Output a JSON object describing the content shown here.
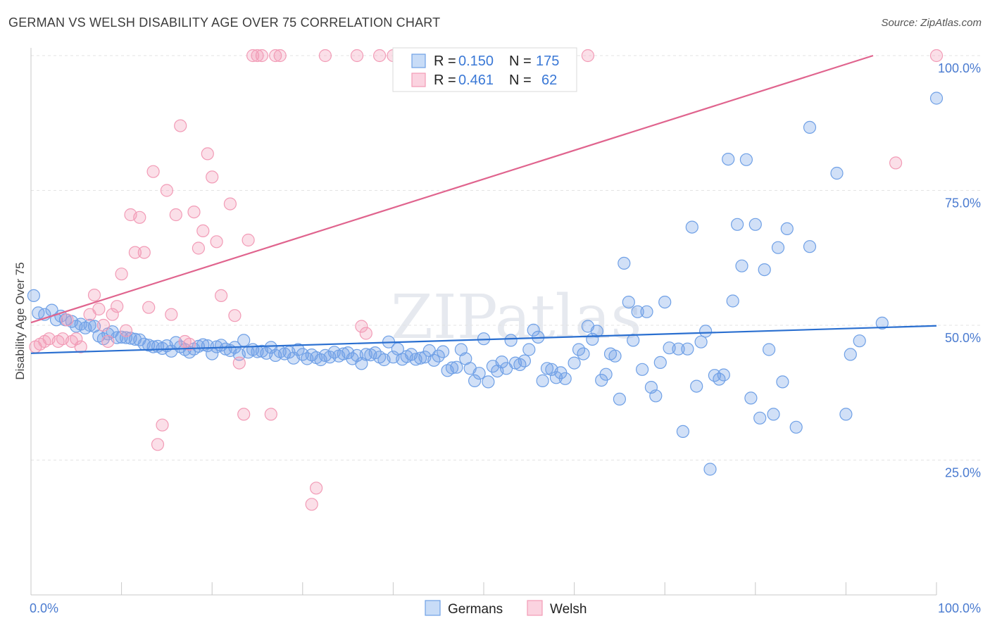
{
  "title": "GERMAN VS WELSH DISABILITY AGE OVER 75 CORRELATION CHART",
  "source": "Source: ZipAtlas.com",
  "watermark": "ZIPatlas",
  "chart_data": {
    "type": "scatter",
    "title": "GERMAN VS WELSH DISABILITY AGE OVER 75 CORRELATION CHART",
    "xlabel": "",
    "ylabel": "Disability Age Over 75",
    "xlim": [
      0,
      100
    ],
    "ylim": [
      0,
      102
    ],
    "x_tick_labels": [
      "0.0%",
      "100.0%"
    ],
    "y_ticks": [
      25,
      50,
      75,
      100
    ],
    "y_tick_labels": [
      "25.0%",
      "50.0%",
      "75.0%",
      "100.0%"
    ],
    "grid": true,
    "legend_position": "top-center",
    "series": [
      {
        "name": "Germans",
        "color": "#6fa0e6",
        "line_color": "#2a6fd0",
        "R": "0.150",
        "N": "175",
        "trend": [
          [
            0,
            44.8
          ],
          [
            100,
            49.9
          ]
        ],
        "points": [
          [
            0.3,
            55.5
          ],
          [
            0.8,
            52.3
          ],
          [
            1.5,
            52.0
          ],
          [
            2.3,
            52.8
          ],
          [
            2.8,
            51.0
          ],
          [
            3.3,
            51.7
          ],
          [
            3.8,
            51.0
          ],
          [
            4.5,
            50.7
          ],
          [
            5.0,
            49.8
          ],
          [
            5.5,
            50.2
          ],
          [
            6.0,
            49.5
          ],
          [
            6.5,
            50.0
          ],
          [
            7.0,
            49.8
          ],
          [
            7.5,
            48.0
          ],
          [
            8.0,
            47.5
          ],
          [
            8.5,
            48.4
          ],
          [
            9.0,
            48.8
          ],
          [
            9.5,
            47.7
          ],
          [
            10.0,
            47.8
          ],
          [
            10.5,
            47.7
          ],
          [
            11.0,
            47.6
          ],
          [
            11.5,
            47.4
          ],
          [
            12.0,
            47.3
          ],
          [
            12.5,
            46.5
          ],
          [
            13.0,
            46.3
          ],
          [
            13.5,
            46.0
          ],
          [
            14.0,
            46.1
          ],
          [
            14.5,
            45.7
          ],
          [
            15.0,
            46.2
          ],
          [
            15.5,
            45.2
          ],
          [
            16.0,
            46.8
          ],
          [
            16.5,
            46.0
          ],
          [
            17.0,
            45.5
          ],
          [
            17.5,
            45.0
          ],
          [
            18.0,
            45.6
          ],
          [
            18.5,
            46.1
          ],
          [
            19.0,
            46.4
          ],
          [
            19.5,
            46.2
          ],
          [
            20.0,
            44.7
          ],
          [
            20.5,
            46.0
          ],
          [
            21.0,
            46.3
          ],
          [
            21.5,
            45.6
          ],
          [
            22.0,
            45.3
          ],
          [
            22.5,
            45.9
          ],
          [
            23.0,
            44.6
          ],
          [
            23.5,
            47.2
          ],
          [
            24.0,
            45.0
          ],
          [
            24.5,
            45.5
          ],
          [
            25.0,
            45.1
          ],
          [
            25.5,
            45.2
          ],
          [
            26.0,
            44.8
          ],
          [
            26.5,
            45.9
          ],
          [
            27.0,
            44.4
          ],
          [
            27.5,
            45.1
          ],
          [
            28.0,
            44.7
          ],
          [
            28.5,
            45.0
          ],
          [
            29.0,
            43.9
          ],
          [
            29.5,
            45.5
          ],
          [
            30.0,
            44.6
          ],
          [
            30.5,
            43.8
          ],
          [
            31.0,
            44.5
          ],
          [
            31.5,
            44.0
          ],
          [
            32.0,
            43.6
          ],
          [
            32.5,
            44.4
          ],
          [
            33.0,
            44.1
          ],
          [
            33.5,
            45.0
          ],
          [
            34.0,
            44.3
          ],
          [
            34.5,
            44.7
          ],
          [
            35.0,
            44.9
          ],
          [
            35.5,
            43.8
          ],
          [
            36.0,
            44.4
          ],
          [
            36.5,
            42.9
          ],
          [
            37.0,
            44.6
          ],
          [
            37.5,
            44.5
          ],
          [
            38.0,
            44.9
          ],
          [
            38.5,
            44.1
          ],
          [
            39.0,
            43.6
          ],
          [
            39.5,
            46.9
          ],
          [
            40.0,
            44.1
          ],
          [
            40.5,
            45.6
          ],
          [
            41.0,
            43.7
          ],
          [
            41.5,
            44.2
          ],
          [
            42.0,
            44.6
          ],
          [
            42.5,
            43.7
          ],
          [
            43.0,
            43.9
          ],
          [
            43.5,
            44.1
          ],
          [
            44.0,
            45.3
          ],
          [
            44.5,
            43.5
          ],
          [
            45.0,
            44.3
          ],
          [
            45.5,
            45.1
          ],
          [
            46.0,
            41.6
          ],
          [
            46.5,
            42.1
          ],
          [
            47.0,
            42.2
          ],
          [
            47.5,
            45.5
          ],
          [
            48.0,
            43.8
          ],
          [
            48.5,
            42.0
          ],
          [
            49.0,
            39.7
          ],
          [
            49.5,
            41.1
          ],
          [
            50.0,
            47.5
          ],
          [
            50.5,
            39.5
          ],
          [
            51.0,
            42.4
          ],
          [
            51.5,
            41.5
          ],
          [
            52.0,
            43.2
          ],
          [
            52.5,
            42.0
          ],
          [
            53.0,
            47.2
          ],
          [
            53.5,
            43.0
          ],
          [
            54.0,
            42.7
          ],
          [
            54.5,
            43.4
          ],
          [
            55.0,
            45.5
          ],
          [
            55.5,
            49.1
          ],
          [
            56.0,
            47.8
          ],
          [
            56.5,
            39.7
          ],
          [
            57.0,
            42.0
          ],
          [
            57.5,
            41.8
          ],
          [
            58.0,
            40.3
          ],
          [
            58.5,
            41.2
          ],
          [
            59.0,
            40.1
          ],
          [
            60.0,
            43.0
          ],
          [
            60.5,
            45.5
          ],
          [
            61.0,
            44.7
          ],
          [
            61.5,
            49.8
          ],
          [
            62.0,
            47.4
          ],
          [
            62.5,
            48.9
          ],
          [
            63.0,
            39.8
          ],
          [
            63.5,
            40.9
          ],
          [
            64.0,
            44.7
          ],
          [
            64.5,
            44.3
          ],
          [
            65.0,
            36.3
          ],
          [
            65.5,
            61.5
          ],
          [
            66.0,
            54.3
          ],
          [
            66.5,
            47.2
          ],
          [
            67.0,
            52.5
          ],
          [
            67.5,
            41.8
          ],
          [
            68.0,
            52.5
          ],
          [
            68.5,
            38.5
          ],
          [
            69.0,
            36.9
          ],
          [
            69.5,
            43.1
          ],
          [
            70.0,
            54.3
          ],
          [
            70.5,
            45.8
          ],
          [
            71.5,
            45.6
          ],
          [
            72.0,
            30.3
          ],
          [
            72.5,
            45.6
          ],
          [
            73.0,
            68.2
          ],
          [
            73.5,
            38.7
          ],
          [
            74.0,
            46.9
          ],
          [
            74.5,
            48.9
          ],
          [
            75.0,
            23.3
          ],
          [
            75.5,
            40.7
          ],
          [
            76.0,
            40.0
          ],
          [
            76.5,
            40.8
          ],
          [
            77.0,
            80.8
          ],
          [
            77.5,
            54.5
          ],
          [
            78.0,
            68.7
          ],
          [
            78.5,
            61.0
          ],
          [
            79.0,
            80.7
          ],
          [
            79.5,
            36.5
          ],
          [
            80.0,
            68.7
          ],
          [
            80.5,
            32.8
          ],
          [
            81.0,
            60.3
          ],
          [
            81.5,
            45.5
          ],
          [
            82.0,
            33.5
          ],
          [
            82.5,
            64.4
          ],
          [
            83.0,
            39.5
          ],
          [
            83.5,
            67.9
          ],
          [
            84.5,
            31.1
          ],
          [
            86.0,
            64.6
          ],
          [
            86.0,
            86.7
          ],
          [
            89.0,
            78.2
          ],
          [
            90.0,
            33.5
          ],
          [
            90.5,
            44.6
          ],
          [
            91.5,
            47.1
          ],
          [
            94.0,
            50.4
          ],
          [
            100.0,
            92.1
          ]
        ]
      },
      {
        "name": "Welsh",
        "color": "#f29bb6",
        "line_color": "#e0648e",
        "R": "0.461",
        "N": "62",
        "trend": [
          [
            0,
            50.5
          ],
          [
            93,
            100
          ]
        ],
        "points": [
          [
            0.5,
            46.0
          ],
          [
            1.0,
            46.5
          ],
          [
            1.5,
            47.0
          ],
          [
            2.0,
            47.5
          ],
          [
            3.0,
            47.0
          ],
          [
            3.5,
            47.5
          ],
          [
            4.0,
            51.0
          ],
          [
            4.5,
            47.0
          ],
          [
            5.0,
            47.5
          ],
          [
            5.5,
            46.0
          ],
          [
            6.5,
            52.0
          ],
          [
            7.0,
            55.6
          ],
          [
            7.5,
            53.0
          ],
          [
            8.0,
            50.0
          ],
          [
            8.5,
            47.0
          ],
          [
            9.0,
            52.0
          ],
          [
            9.5,
            53.5
          ],
          [
            10.0,
            59.5
          ],
          [
            10.5,
            49.0
          ],
          [
            11.0,
            70.5
          ],
          [
            11.5,
            63.5
          ],
          [
            12.0,
            70.0
          ],
          [
            12.5,
            63.5
          ],
          [
            13.0,
            53.3
          ],
          [
            13.5,
            78.5
          ],
          [
            14.0,
            27.9
          ],
          [
            14.5,
            31.5
          ],
          [
            15.0,
            75.0
          ],
          [
            15.5,
            52.0
          ],
          [
            16.0,
            70.5
          ],
          [
            16.5,
            87.0
          ],
          [
            17.0,
            47.0
          ],
          [
            17.5,
            46.5
          ],
          [
            18.0,
            71.0
          ],
          [
            18.5,
            64.3
          ],
          [
            19.0,
            67.5
          ],
          [
            19.5,
            81.8
          ],
          [
            20.0,
            77.5
          ],
          [
            20.5,
            65.5
          ],
          [
            21.0,
            55.5
          ],
          [
            22.0,
            72.5
          ],
          [
            22.5,
            51.8
          ],
          [
            23.0,
            43.0
          ],
          [
            23.5,
            33.5
          ],
          [
            24.0,
            65.8
          ],
          [
            24.5,
            100.0
          ],
          [
            25.0,
            100.0
          ],
          [
            25.5,
            100.0
          ],
          [
            26.5,
            33.5
          ],
          [
            27.0,
            100.0
          ],
          [
            27.5,
            100.0
          ],
          [
            31.0,
            16.8
          ],
          [
            31.5,
            19.8
          ],
          [
            32.5,
            100.0
          ],
          [
            36.0,
            100.0
          ],
          [
            36.5,
            49.8
          ],
          [
            37.0,
            48.5
          ],
          [
            38.5,
            100.0
          ],
          [
            40.0,
            100.0
          ],
          [
            61.5,
            100.0
          ],
          [
            95.5,
            80.1
          ],
          [
            100.0,
            100.0
          ]
        ]
      }
    ]
  },
  "legend": {
    "rows": [
      {
        "r_label": "R =",
        "r_value": "0.150",
        "n_label": "N =",
        "n_value": "175",
        "color": "#6fa0e6"
      },
      {
        "r_label": "R =",
        "r_value": "0.461",
        "n_label": "N =",
        "n_value": "62",
        "color": "#f29bb6"
      }
    ],
    "bottom": [
      "Germans",
      "Welsh"
    ]
  }
}
